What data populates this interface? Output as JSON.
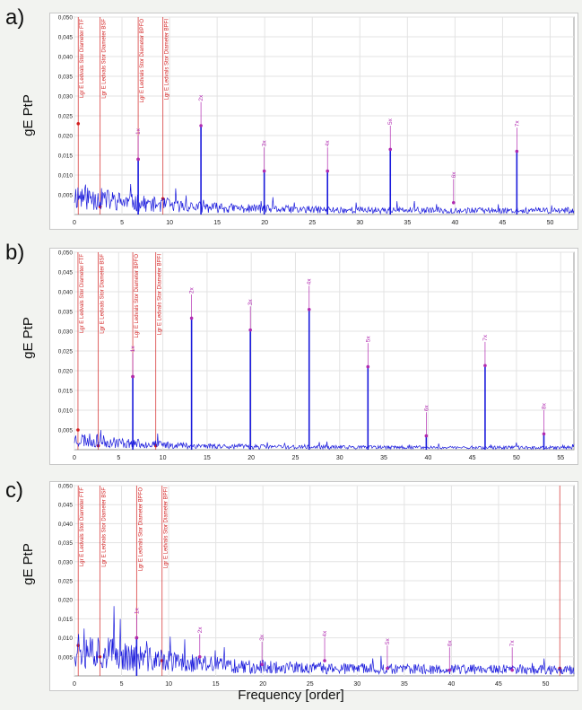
{
  "figure": {
    "xlabel": "Frequency [order]",
    "ylabel": "gE PtP"
  },
  "colors": {
    "spectrum": "#1a1adc",
    "bearing": "#d21e1e",
    "harmonic": "#b02ab0"
  },
  "chart_data": [
    {
      "panel": "a)",
      "type": "line",
      "ylabel": "gE PtP",
      "xlim": [
        0,
        52.5
      ],
      "ylim": [
        0,
        0.05
      ],
      "xticks": [
        0,
        5,
        10,
        15,
        20,
        25,
        30,
        35,
        40,
        45,
        50
      ],
      "xtick_labels": [
        "0",
        "5",
        "10",
        "15",
        "20",
        "25",
        "30",
        "35",
        "40",
        "45",
        "50"
      ],
      "yticks": [
        0.005,
        0.01,
        0.015,
        0.02,
        0.025,
        0.03,
        0.035,
        0.04,
        0.045,
        0.05
      ],
      "ytick_labels": [
        "0,005",
        "0,010",
        "0,015",
        "0,020",
        "0,025",
        "0,030",
        "0,035",
        "0,040",
        "0,045",
        "0,050"
      ],
      "grid": true,
      "noise_level": 0.0045,
      "noise_seed": 11,
      "bearing_markers": [
        {
          "x": 0.4,
          "label": "Lgr E Ledvals Stor Diameter FTF",
          "value": 0.023
        },
        {
          "x": 2.7,
          "label": "Lgr E Ledvals Stor Diameter BSF",
          "value": 0.002
        },
        {
          "x": 6.7,
          "label": "Lgr E Ledvals Stor Diameter BPFO",
          "value": 0.014
        },
        {
          "x": 9.3,
          "label": "Lgr E Ledvals Stor Diameter BPFI",
          "value": 0.004
        }
      ],
      "harmonics": [
        {
          "x": 6.7,
          "label": "1x",
          "value": 0.014
        },
        {
          "x": 13.3,
          "label": "2x",
          "value": 0.0225
        },
        {
          "x": 19.95,
          "label": "3x",
          "value": 0.011
        },
        {
          "x": 26.6,
          "label": "4x",
          "value": 0.011
        },
        {
          "x": 33.2,
          "label": "5x",
          "value": 0.0165
        },
        {
          "x": 39.85,
          "label": "6x",
          "value": 0.003
        },
        {
          "x": 46.5,
          "label": "7x",
          "value": 0.016
        }
      ]
    },
    {
      "panel": "b)",
      "type": "line",
      "ylabel": "gE PtP",
      "xlim": [
        0,
        56.5
      ],
      "ylim": [
        0,
        0.05
      ],
      "xticks": [
        0,
        5,
        10,
        15,
        20,
        25,
        30,
        35,
        40,
        45,
        50,
        55
      ],
      "xtick_labels": [
        "0",
        "5",
        "10",
        "15",
        "20",
        "25",
        "30",
        "35",
        "40",
        "45",
        "50",
        "55"
      ],
      "yticks": [
        0.005,
        0.01,
        0.015,
        0.02,
        0.025,
        0.03,
        0.035,
        0.04,
        0.045,
        0.05
      ],
      "ytick_labels": [
        "0,005",
        "0,010",
        "0,015",
        "0,020",
        "0,025",
        "0,030",
        "0,035",
        "0,040",
        "0,045",
        "0,050"
      ],
      "grid": true,
      "noise_level": 0.0025,
      "noise_seed": 23,
      "bearing_markers": [
        {
          "x": 0.4,
          "label": "Lgr E Ledvals Stor Diameter FTF",
          "value": 0.005
        },
        {
          "x": 2.7,
          "label": "Lgr E Ledvals Stor Diameter BSF",
          "value": 0.001
        },
        {
          "x": 6.6,
          "label": "Lgr E Ledvals Stor Diameter BPFO",
          "value": 0.0185
        },
        {
          "x": 9.2,
          "label": "Lgr E Ledvals Stor Diameter BPFI",
          "value": 0.001
        }
      ],
      "harmonics": [
        {
          "x": 6.6,
          "label": "1x",
          "value": 0.0185
        },
        {
          "x": 13.25,
          "label": "2x",
          "value": 0.0333
        },
        {
          "x": 19.9,
          "label": "3x",
          "value": 0.0303
        },
        {
          "x": 26.55,
          "label": "4x",
          "value": 0.0355
        },
        {
          "x": 33.2,
          "label": "5x",
          "value": 0.021
        },
        {
          "x": 39.8,
          "label": "6x",
          "value": 0.0035
        },
        {
          "x": 46.45,
          "label": "7x",
          "value": 0.0213
        },
        {
          "x": 53.1,
          "label": "8x",
          "value": 0.004
        }
      ]
    },
    {
      "panel": "c)",
      "type": "line",
      "ylabel": "gE PtP",
      "xlim": [
        0,
        53
      ],
      "ylim": [
        0,
        0.05
      ],
      "xticks": [
        0,
        5,
        10,
        15,
        20,
        25,
        30,
        35,
        40,
        45,
        50
      ],
      "xtick_labels": [
        "0",
        "5",
        "10",
        "15",
        "20",
        "25",
        "30",
        "35",
        "40",
        "45",
        "50"
      ],
      "yticks": [
        0.005,
        0.01,
        0.015,
        0.02,
        0.025,
        0.03,
        0.035,
        0.04,
        0.045,
        0.05
      ],
      "ytick_labels": [
        "0,005",
        "0,010",
        "0,015",
        "0,020",
        "0,025",
        "0,030",
        "0,035",
        "0,040",
        "0,045",
        "0,050"
      ],
      "grid": true,
      "noise_level": 0.0075,
      "noise_seed": 37,
      "bearing_markers": [
        {
          "x": 0.4,
          "label": "Lgr E Ledvals Stor Diameter FTF",
          "value": 0.008
        },
        {
          "x": 2.7,
          "label": "Lgr E Ledvals Stor Diameter BSF",
          "value": 0.005
        },
        {
          "x": 6.6,
          "label": "Lgr E Ledvals Stor Diameter BPFO",
          "value": 0.01
        },
        {
          "x": 9.3,
          "label": "Lgr E Ledvals Stor Diameter BPFI",
          "value": 0.004
        },
        {
          "x": 51.5,
          "label": "",
          "value": 0.002
        }
      ],
      "harmonics": [
        {
          "x": 6.6,
          "label": "1x",
          "value": 0.01
        },
        {
          "x": 13.3,
          "label": "2x",
          "value": 0.005
        },
        {
          "x": 19.9,
          "label": "3x",
          "value": 0.003
        },
        {
          "x": 26.55,
          "label": "4x",
          "value": 0.004
        },
        {
          "x": 33.2,
          "label": "5x",
          "value": 0.002
        },
        {
          "x": 39.8,
          "label": "6x",
          "value": 0.0015
        },
        {
          "x": 46.45,
          "label": "7x",
          "value": 0.0015
        }
      ]
    }
  ]
}
